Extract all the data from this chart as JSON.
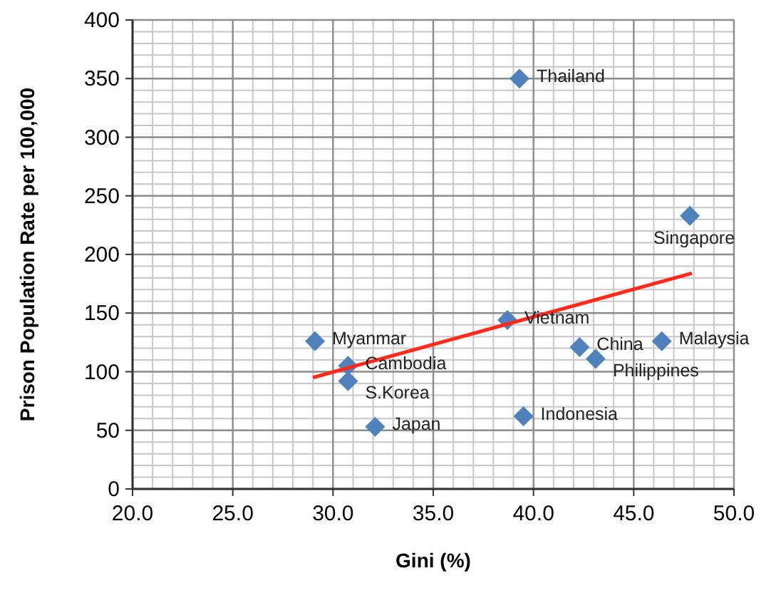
{
  "chart_data": {
    "type": "scatter",
    "xlabel": "Gini (%)",
    "ylabel": "Prison Population Rate per 100,000",
    "xlim": [
      20,
      50
    ],
    "ylim": [
      0,
      400
    ],
    "xticks": [
      {
        "value": 20,
        "label": "20.0"
      },
      {
        "value": 25,
        "label": "25.0"
      },
      {
        "value": 30,
        "label": "30.0"
      },
      {
        "value": 35,
        "label": "35.0"
      },
      {
        "value": 40,
        "label": "40.0"
      },
      {
        "value": 45,
        "label": "45.0"
      },
      {
        "value": 50,
        "label": "50.0"
      }
    ],
    "yticks": [
      0,
      50,
      100,
      150,
      200,
      250,
      300,
      350,
      400
    ],
    "grid": true,
    "marker": "diamond",
    "series": [
      {
        "color": "#4f81bd",
        "x": [
          39.3,
          47.8,
          29.1,
          30.75,
          30.75,
          32.1,
          38.7,
          39.5,
          42.3,
          43.1,
          46.4
        ],
        "values": [
          350,
          233,
          126,
          105,
          92,
          53,
          144,
          62,
          121,
          111,
          126
        ]
      },
      {
        "type": "line",
        "color": "#ff2a1a",
        "marker": "none",
        "x": [
          29.0,
          47.9
        ],
        "values": [
          95,
          184
        ]
      }
    ],
    "annotations": [
      {
        "text": "Thailand",
        "x": 39.3,
        "y": 350
      },
      {
        "text": "Singapore",
        "x": 47.8,
        "y": 233
      },
      {
        "text": "Myanmar",
        "x": 29.1,
        "y": 126
      },
      {
        "text": "Cambodia",
        "x": 30.75,
        "y": 105
      },
      {
        "text": "S.Korea",
        "x": 30.75,
        "y": 92
      },
      {
        "text": "Japan",
        "x": 32.1,
        "y": 53
      },
      {
        "text": "Vietnam",
        "x": 38.7,
        "y": 144
      },
      {
        "text": "Indonesia",
        "x": 39.5,
        "y": 62
      },
      {
        "text": "China",
        "x": 42.3,
        "y": 121
      },
      {
        "text": "Philippines",
        "x": 43.1,
        "y": 111
      },
      {
        "text": "Malaysia",
        "x": 46.4,
        "y": 126
      }
    ]
  }
}
